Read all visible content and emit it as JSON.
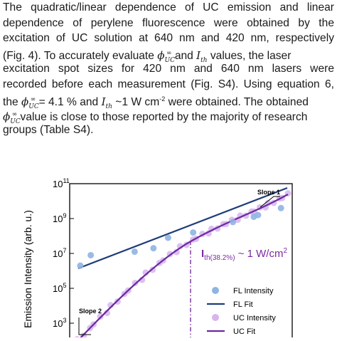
{
  "paragraph": {
    "line1": "The quadratic/linear dependence of UC emission and linear",
    "line2": "dependence of perylene fluorescence were obtained by the",
    "line3": "excitation of UC solution at 640 nm and 420 nm, respectively",
    "line4a": "(Fig. 4). To accurately evaluate ",
    "line4_phi": "ϕ",
    "line4_phi_sub": "UC",
    "line4_phi_sup": "∞",
    "line4b": " and ",
    "line4_i": "I",
    "line4_i_sub": "th",
    "line4c": " values, the laser",
    "line5": "excitation spot sizes for 420 nm and 640 nm lasers were",
    "line6": "recorded before each measurement (Fig. S4). Using equation 6,",
    "line7a": "the ",
    "line7b": " = 4.1 % and ",
    "line7c": " ~1 W cm",
    "line7_sup": "-2",
    "line7d": " were obtained. The obtained",
    "line8b": " value is close to those reported by the majority of research",
    "line9": "groups (Table S4)."
  },
  "chart_data": {
    "type": "scatter",
    "ylabel": "Emission Intensity (arb. u.)",
    "y_scale": "log",
    "yticks": [
      "10",
      "10",
      "10",
      "10",
      "10"
    ],
    "ytick_exponents": [
      "11",
      "9",
      "7",
      "5",
      "3"
    ],
    "ylim_exponent": [
      2.3,
      11
    ],
    "series": [
      {
        "name": "FL Intensity",
        "marker": "circle",
        "color": "#8fb4e3",
        "points": [
          [
            0.1,
            6.3
          ],
          [
            0.6,
            6.9
          ],
          [
            2.7,
            7.1
          ],
          [
            3.6,
            7.3
          ],
          [
            4.3,
            7.9
          ],
          [
            5.5,
            8.2
          ],
          [
            7.4,
            8.8
          ],
          [
            8.4,
            9.1
          ],
          [
            8.6,
            9.2
          ],
          [
            9.7,
            9.6
          ]
        ]
      },
      {
        "name": "FL Fit",
        "type": "line",
        "color": "#1f3d7a"
      },
      {
        "name": "UC Intensity",
        "marker": "circle",
        "color": "#d7b5ee"
      },
      {
        "name": "UC Fit",
        "type": "line",
        "color": "#6a2aa0"
      }
    ],
    "annotations": {
      "slope1": "Slope 1",
      "slope2": "Slope 2",
      "threshold_main": "I",
      "threshold_sub": "th(38.2%)",
      "threshold_rest": " ~ 1 W/cm",
      "threshold_sup": "2"
    },
    "colors": {
      "threshold": "#7a2aa0",
      "fl": "#1f3d7a",
      "uc": "#6a2aa0"
    }
  }
}
